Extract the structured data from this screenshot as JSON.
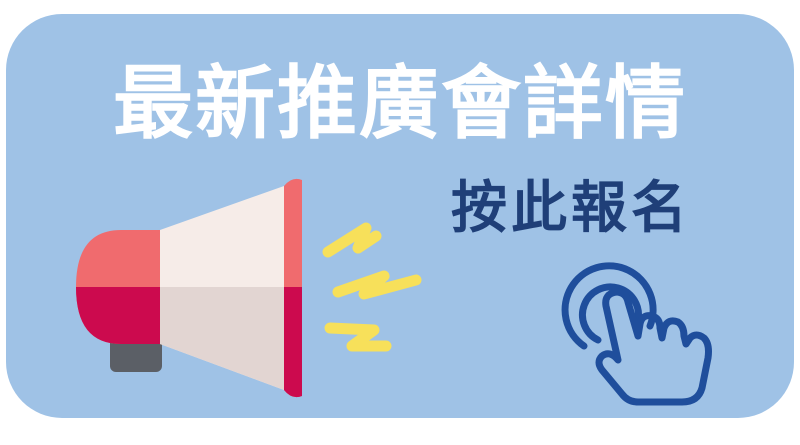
{
  "banner": {
    "headline": "最新推廣會詳情",
    "cta": "按此報名"
  },
  "icons": {
    "megaphone": "megaphone-icon",
    "sound_waves": "sound-waves-icon",
    "click_hand": "pointing-hand-click-icon"
  },
  "colors": {
    "background": "#9fc2e6",
    "headline_text": "#ffffff",
    "cta_text": "#1f3f78",
    "megaphone_red": "#f06b6e",
    "megaphone_crimson": "#cc0a4e",
    "megaphone_cream": "#f6ece8",
    "megaphone_grey": "#5b5f66",
    "sound_wave_yellow": "#f7e05a",
    "hand_outline": "#1f4e9c"
  }
}
